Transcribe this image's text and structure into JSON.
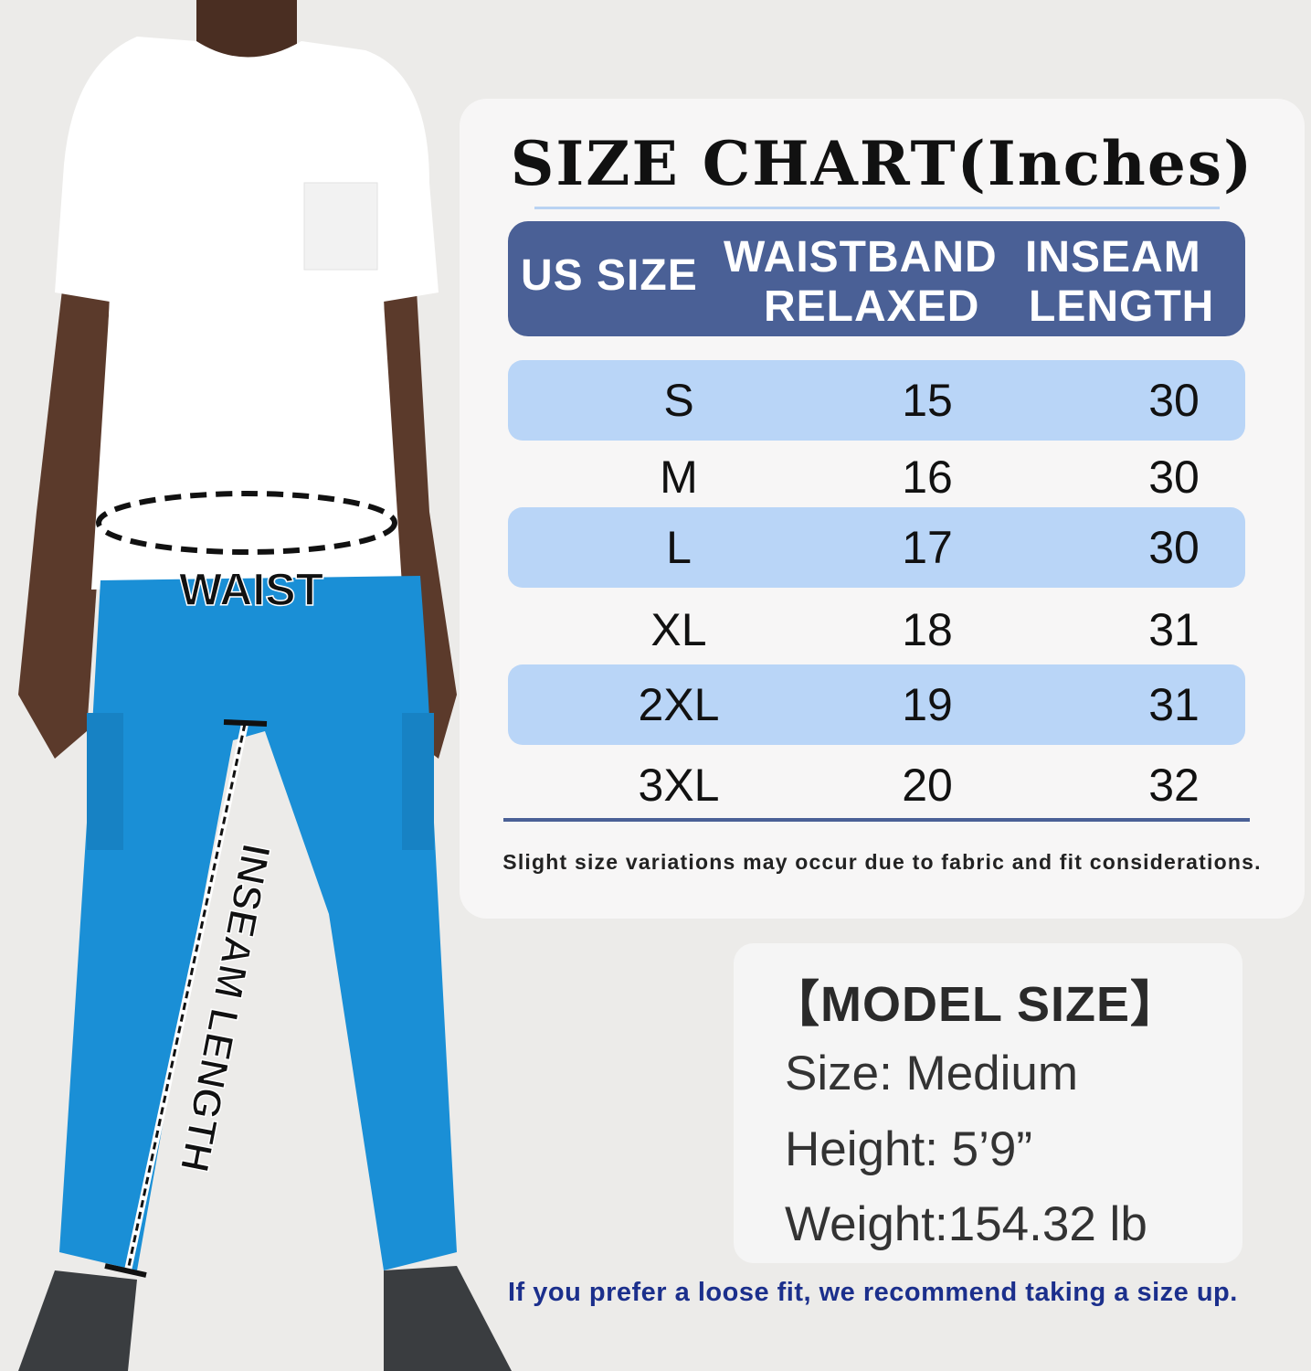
{
  "figure": {
    "waist_label": "WAIST",
    "inseam_label": "INSEAM LENGTH",
    "colors": {
      "shirt": "#ffffff",
      "pants": "#1a8fd6",
      "skin": "#5b3a2b",
      "shoes": "#3a3d40"
    }
  },
  "size_chart": {
    "title": "SIZE CHART(Inches)",
    "headers": {
      "us_size": "US SIZE",
      "waistband_line1": "WAISTBAND",
      "waistband_line2": "RELAXED",
      "inseam_line1": "INSEAM",
      "inseam_line2": "LENGTH"
    },
    "rows": [
      {
        "size": "S",
        "waistband": "15",
        "inseam": "30"
      },
      {
        "size": "M",
        "waistband": "16",
        "inseam": "30"
      },
      {
        "size": "L",
        "waistband": "17",
        "inseam": "30"
      },
      {
        "size": "XL",
        "waistband": "18",
        "inseam": "31"
      },
      {
        "size": "2XL",
        "waistband": "19",
        "inseam": "31"
      },
      {
        "size": "3XL",
        "waistband": "20",
        "inseam": "32"
      }
    ],
    "note": "Slight size variations may occur due to fabric and fit considerations.",
    "colors": {
      "header": "#4a6096",
      "row_shade": "#b9d5f7"
    }
  },
  "model": {
    "title": "【MODEL SIZE】",
    "size": "Size: Medium",
    "height": "Height: 5’9”",
    "weight": "Weight:154.32 lb"
  },
  "tip": "If you prefer a loose fit, we recommend taking a size up."
}
